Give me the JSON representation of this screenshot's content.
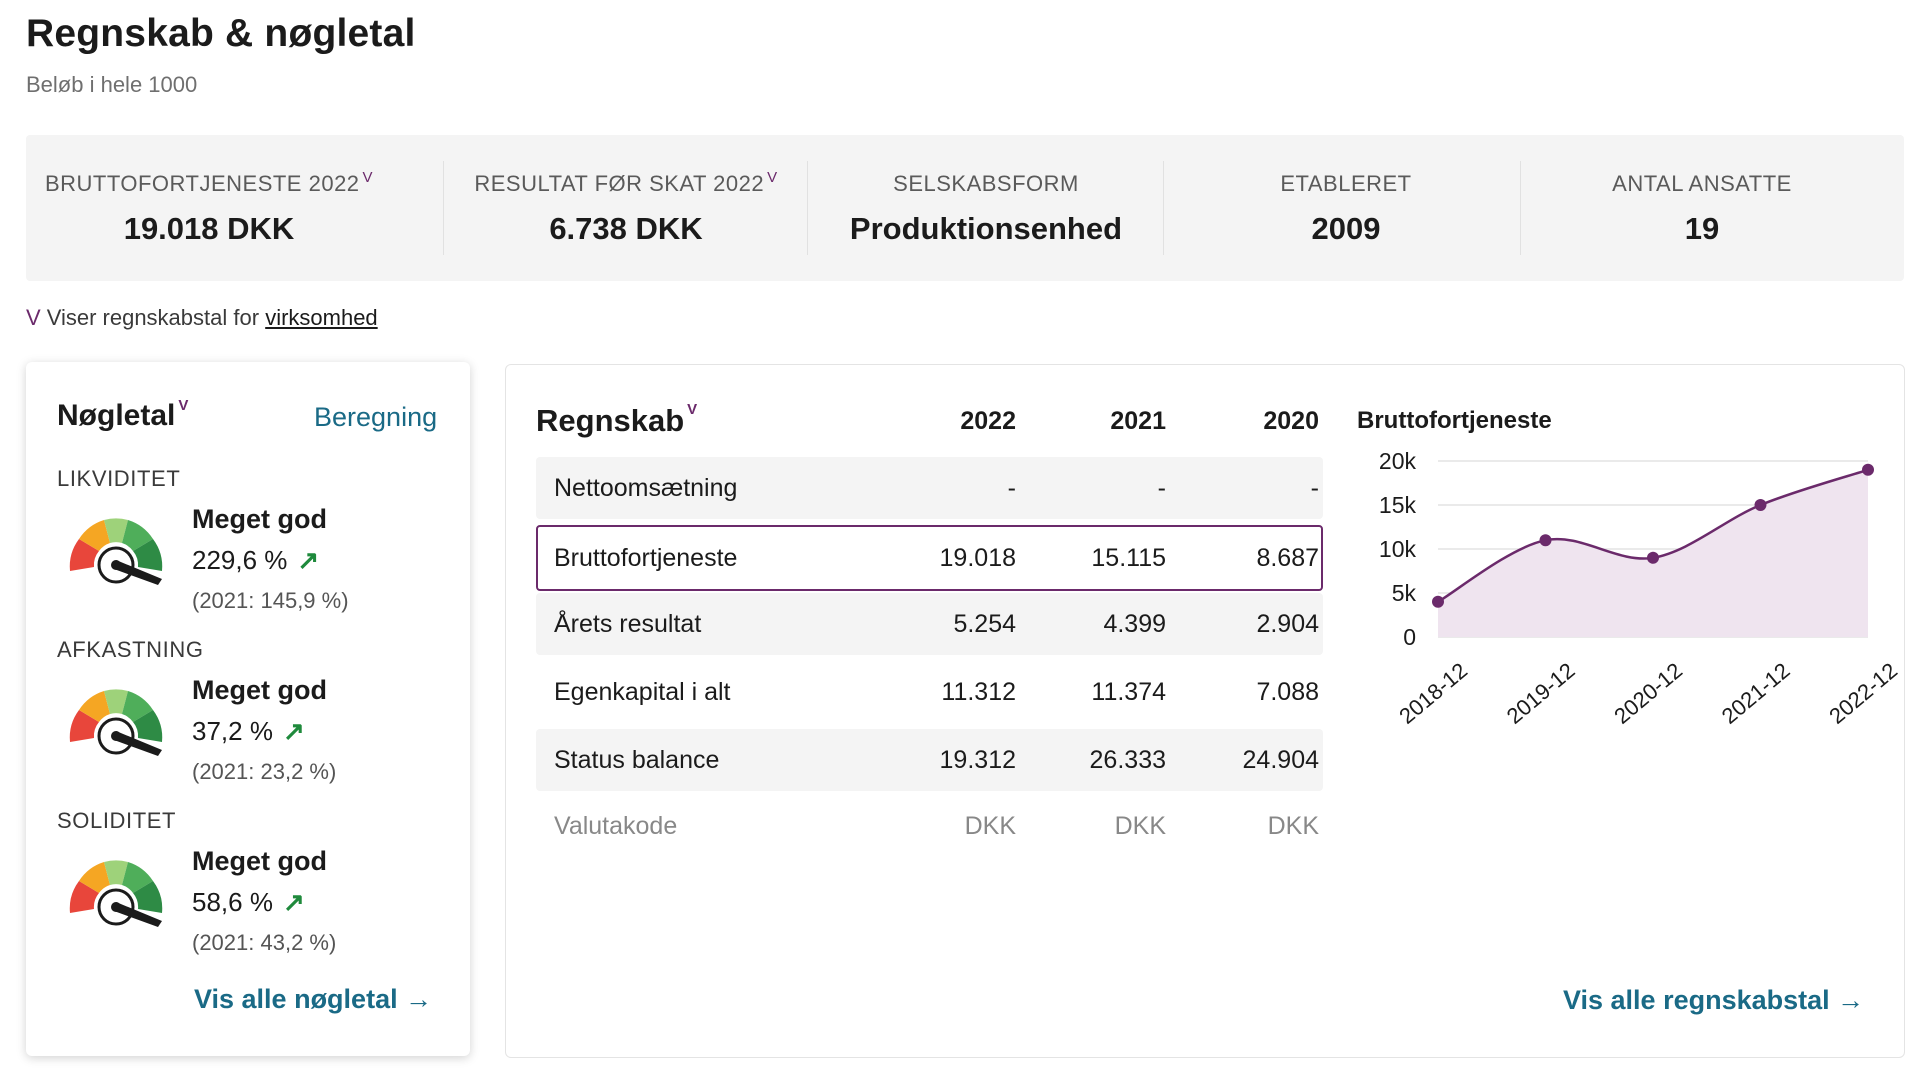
{
  "header": {
    "title": "Regnskab & nøgletal",
    "subtitle": "Beløb i hele 1000"
  },
  "summary": [
    {
      "label": "BRUTTOFORTJENESTE 2022",
      "marker": "V",
      "value": "19.018 DKK"
    },
    {
      "label": "RESULTAT FØR SKAT 2022",
      "marker": "V",
      "value": "6.738 DKK"
    },
    {
      "label": "SELSKABSFORM",
      "marker": "",
      "value": "Produktionsenhed"
    },
    {
      "label": "ETABLERET",
      "marker": "",
      "value": "2009"
    },
    {
      "label": "ANTAL ANSATTE",
      "marker": "",
      "value": "19"
    }
  ],
  "note": {
    "marker": "V",
    "text": "Viser regnskabstal for",
    "link": "virksomhed"
  },
  "keyfigures": {
    "title": "Nøgletal",
    "marker": "V",
    "calc_link": "Beregning",
    "items": [
      {
        "section": "LIKVIDITET",
        "rating": "Meget god",
        "value": "229,6 %",
        "arrow": "↗",
        "prev": "(2021: 145,9 %)"
      },
      {
        "section": "AFKASTNING",
        "rating": "Meget god",
        "value": "37,2 %",
        "arrow": "↗",
        "prev": "(2021: 23,2 %)"
      },
      {
        "section": "SOLIDITET",
        "rating": "Meget god",
        "value": "58,6 %",
        "arrow": "↗",
        "prev": "(2021: 43,2 %)"
      }
    ],
    "all_link": "Vis alle nøgletal",
    "all_arrow": "→"
  },
  "accounts": {
    "title": "Regnskab",
    "marker": "V",
    "years": [
      "2022",
      "2021",
      "2020"
    ],
    "rows": [
      {
        "label": "Nettoomsætning",
        "values": [
          "-",
          "-",
          "-"
        ]
      },
      {
        "label": "Bruttofortjeneste",
        "values": [
          "19.018",
          "15.115",
          "8.687"
        ]
      },
      {
        "label": "Årets resultat",
        "values": [
          "5.254",
          "4.399",
          "2.904"
        ]
      },
      {
        "label": "Egenkapital i alt",
        "values": [
          "11.312",
          "11.374",
          "7.088"
        ]
      },
      {
        "label": "Status balance",
        "values": [
          "19.312",
          "26.333",
          "24.904"
        ]
      }
    ],
    "currency_row": {
      "label": "Valutakode",
      "values": [
        "DKK",
        "DKK",
        "DKK"
      ]
    },
    "all_link": "Vis alle regnskabstal",
    "all_arrow": "→"
  },
  "chart_data": {
    "type": "area",
    "title": "Bruttofortjeneste",
    "x": [
      "2018-12",
      "2019-12",
      "2020-12",
      "2021-12",
      "2022-12"
    ],
    "values": [
      4000,
      11000,
      9000,
      15000,
      19000
    ],
    "yticks": [
      "20k",
      "15k",
      "10k",
      "5k",
      "0"
    ],
    "ylim": [
      0,
      20000
    ],
    "grid": true,
    "color": "#6b2a6b",
    "fill": "#efe4ef"
  },
  "colors": {
    "accent": "#6b2a6b",
    "link": "#1a6a86",
    "positive": "#1f8a3c"
  }
}
